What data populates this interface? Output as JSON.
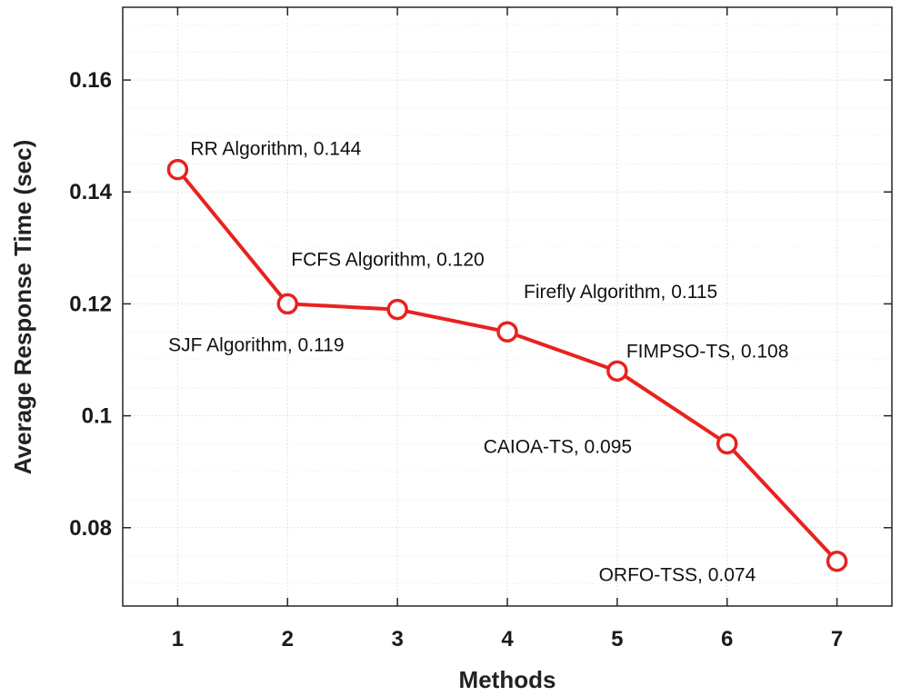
{
  "chart_data": {
    "type": "line",
    "title": "",
    "xlabel": "Methods",
    "ylabel": "Average Response Time (sec)",
    "x": [
      1,
      2,
      3,
      4,
      5,
      6,
      7
    ],
    "x_tick_labels": [
      "1",
      "2",
      "3",
      "4",
      "5",
      "6",
      "7"
    ],
    "xlim": [
      0.5,
      7.5
    ],
    "ylim": [
      0.066,
      0.173
    ],
    "y_ticks": [
      0.08,
      0.1,
      0.12,
      0.14,
      0.16
    ],
    "y_tick_labels": [
      "0.08",
      "0.1",
      "0.12",
      "0.14",
      "0.16"
    ],
    "grid": true,
    "series": [
      {
        "name": "Average Response Time",
        "color": "#e8221e",
        "marker": "circle",
        "values": [
          0.144,
          0.12,
          0.119,
          0.115,
          0.108,
          0.095,
          0.074
        ]
      }
    ],
    "annotations": [
      {
        "point": 1,
        "text": "RR Algorithm, 0.144"
      },
      {
        "point": 2,
        "text": "FCFS Algorithm, 0.120"
      },
      {
        "point": 3,
        "text": "SJF Algorithm, 0.119"
      },
      {
        "point": 4,
        "text": "Firefly Algorithm, 0.115"
      },
      {
        "point": 5,
        "text": "FIMPSO-TS, 0.108"
      },
      {
        "point": 6,
        "text": "CAIOA-TS, 0.095"
      },
      {
        "point": 7,
        "text": "ORFO-TSS, 0.074"
      }
    ]
  }
}
